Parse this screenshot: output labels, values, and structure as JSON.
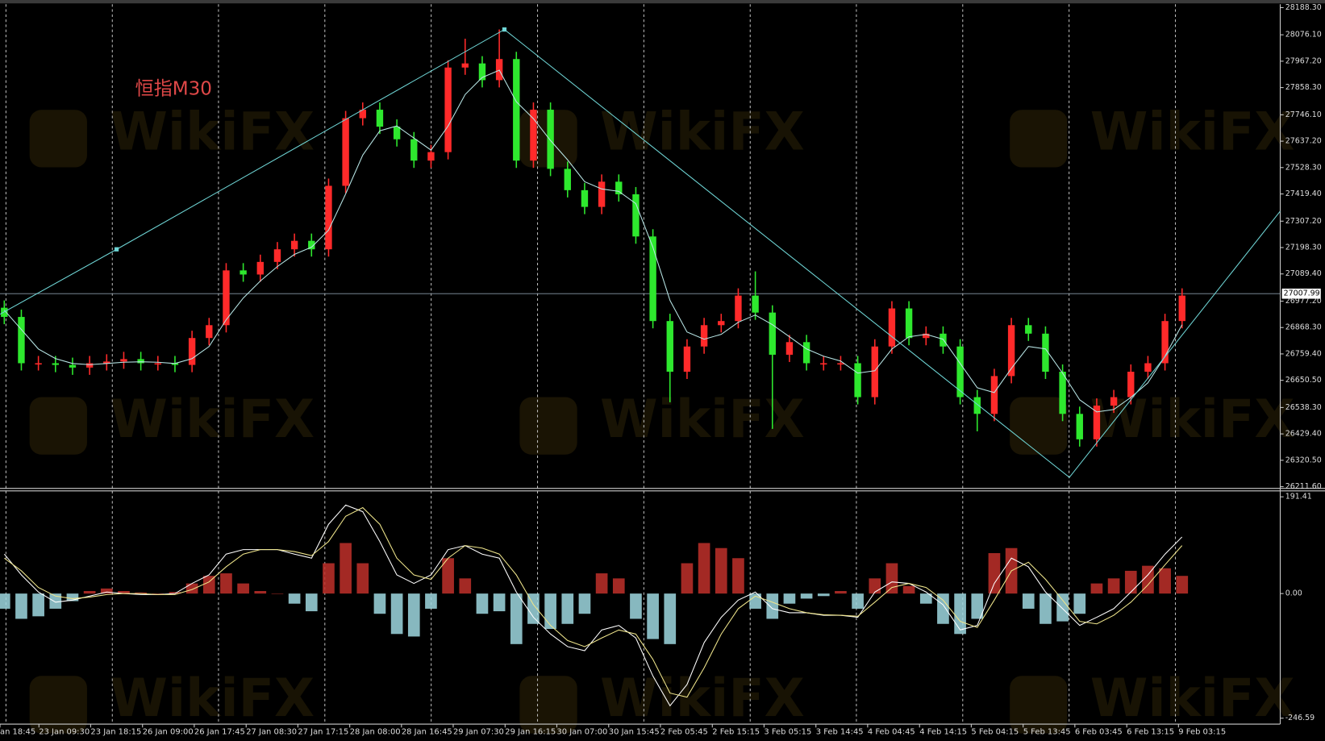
{
  "chart_data": [
    {
      "type": "candlestick",
      "title": "恒指M30",
      "watermark": "WikiFX",
      "up_color": "#ff2a2a",
      "down_color": "#2ee82e",
      "open": [
        26950,
        26912,
        26721,
        26721,
        26714,
        26703,
        26721,
        26728,
        26738,
        26721,
        26721,
        26714,
        26825,
        26878,
        27104,
        27087,
        27139,
        27191,
        27226,
        27191,
        27453,
        27732,
        27767,
        27697,
        27645,
        27557,
        27592,
        27941,
        27958,
        27889,
        27976,
        27557,
        27767,
        27523,
        27435,
        27366,
        27470,
        27418,
        27244,
        26895,
        26686,
        26790,
        26878,
        26895,
        27000,
        26930,
        26756,
        26808,
        26721,
        26721,
        26721,
        26581,
        26790,
        26947,
        26825,
        26843,
        26790,
        26581,
        26512,
        26668,
        26878,
        26843,
        26686,
        26512,
        26407,
        26546,
        26581,
        26686,
        26721,
        26895
      ],
      "high": [
        26980,
        26942,
        26751,
        26751,
        26744,
        26751,
        26758,
        26768,
        26768,
        26751,
        26751,
        26855,
        26908,
        27134,
        27134,
        27169,
        27221,
        27256,
        27256,
        27483,
        27762,
        27797,
        27797,
        27727,
        27675,
        27622,
        27971,
        28060,
        27988,
        28098,
        28006,
        27797,
        27797,
        27553,
        27465,
        27500,
        27500,
        27448,
        27274,
        26925,
        26820,
        26908,
        26925,
        27030,
        27100,
        26960,
        26838,
        26838,
        26751,
        26751,
        26751,
        26820,
        26977,
        26977,
        26873,
        26873,
        26820,
        26611,
        26698,
        26908,
        26908,
        26873,
        26716,
        26542,
        26576,
        26611,
        26716,
        26751,
        26925,
        27030
      ],
      "low": [
        26882,
        26691,
        26691,
        26684,
        26673,
        26673,
        26691,
        26698,
        26691,
        26691,
        26684,
        26684,
        26795,
        26848,
        27057,
        27057,
        27109,
        27161,
        27161,
        27161,
        27423,
        27702,
        27667,
        27615,
        27527,
        27527,
        27562,
        27911,
        27859,
        27859,
        27527,
        27527,
        27493,
        27405,
        27336,
        27336,
        27388,
        27214,
        26865,
        26560,
        26656,
        26760,
        26848,
        26865,
        26900,
        26450,
        26726,
        26691,
        26691,
        26691,
        26551,
        26551,
        26760,
        26795,
        26795,
        26760,
        26551,
        26440,
        26482,
        26638,
        26813,
        26656,
        26482,
        26377,
        26377,
        26516,
        26551,
        26656,
        26691,
        26865
      ],
      "close": [
        26912,
        26721,
        26721,
        26714,
        26703,
        26721,
        26728,
        26738,
        26721,
        26721,
        26714,
        26825,
        26878,
        27104,
        27087,
        27139,
        27191,
        27226,
        27191,
        27453,
        27732,
        27767,
        27697,
        27645,
        27557,
        27592,
        27941,
        27958,
        27889,
        27976,
        27557,
        27767,
        27523,
        27435,
        27366,
        27470,
        27418,
        27244,
        26895,
        26686,
        26790,
        26878,
        26895,
        27000,
        26930,
        26756,
        26808,
        26721,
        26721,
        26721,
        26581,
        26790,
        26947,
        26825,
        26843,
        26790,
        26581,
        26512,
        26668,
        26878,
        26843,
        26686,
        26512,
        26407,
        26546,
        26581,
        26686,
        26721,
        26895,
        27000
      ],
      "ma": {
        "color": "#b8e6e6",
        "values": [
          26940,
          26860,
          26780,
          26740,
          26720,
          26715,
          26720,
          26725,
          26727,
          26725,
          26720,
          26740,
          26790,
          26900,
          26990,
          27060,
          27120,
          27170,
          27200,
          27270,
          27420,
          27580,
          27680,
          27700,
          27650,
          27600,
          27700,
          27830,
          27900,
          27930,
          27800,
          27730,
          27640,
          27560,
          27470,
          27440,
          27430,
          27380,
          27200,
          26980,
          26850,
          26820,
          26840,
          26890,
          26920,
          26880,
          26830,
          26780,
          26750,
          26730,
          26680,
          26690,
          26780,
          26830,
          26840,
          26820,
          26720,
          26620,
          26600,
          26700,
          26790,
          26780,
          26680,
          26570,
          26520,
          26530,
          26580,
          26640,
          26750,
          26880
        ]
      },
      "trendline": {
        "color": "#6fd6d6",
        "x": [
          -0.25,
          6.58,
          29.3,
          62.4,
          74.75
        ],
        "y": [
          26923,
          27191,
          28098,
          26250,
          27348
        ]
      },
      "current_price": 27007.99,
      "xlim": [
        -0.25,
        74.75
      ],
      "ylim": [
        26211.6,
        28188.3
      ],
      "yticks": [
        {
          "value": 28188.3,
          "label": "28188.30"
        },
        {
          "value": 28076.1,
          "label": "28076.10"
        },
        {
          "value": 27967.2,
          "label": "27967.20"
        },
        {
          "value": 27858.3,
          "label": "27858.30"
        },
        {
          "value": 27746.1,
          "label": "27746.10"
        },
        {
          "value": 27637.2,
          "label": "27637.20"
        },
        {
          "value": 27528.3,
          "label": "27528.30"
        },
        {
          "value": 27419.4,
          "label": "27419.40"
        },
        {
          "value": 27307.2,
          "label": "27307.20"
        },
        {
          "value": 27198.3,
          "label": "27198.30"
        },
        {
          "value": 27089.4,
          "label": "27089.40"
        },
        {
          "value": 26977.2,
          "label": "26977.20"
        },
        {
          "value": 26868.3,
          "label": "26868.30"
        },
        {
          "value": 26759.4,
          "label": "26759.40"
        },
        {
          "value": 26650.5,
          "label": "26650.50"
        },
        {
          "value": 26538.3,
          "label": "26538.30"
        },
        {
          "value": 26429.4,
          "label": "26429.40"
        },
        {
          "value": 26320.5,
          "label": "26320.50"
        },
        {
          "value": 26211.6,
          "label": "26211.60"
        }
      ],
      "xticks": [
        {
          "value": -0.25,
          "label": "an 18:45"
        },
        {
          "value": 2.03,
          "label": "23 Jan 09:30"
        },
        {
          "value": 5.06,
          "label": "23 Jan 18:15"
        },
        {
          "value": 8.1,
          "label": "26 Jan 09:00"
        },
        {
          "value": 11.13,
          "label": "26 Jan 17:45"
        },
        {
          "value": 14.17,
          "label": "27 Jan 08:30"
        },
        {
          "value": 17.2,
          "label": "27 Jan 17:15"
        },
        {
          "value": 20.24,
          "label": "28 Jan 08:00"
        },
        {
          "value": 23.27,
          "label": "28 Jan 16:45"
        },
        {
          "value": 26.3,
          "label": "29 Jan 07:30"
        },
        {
          "value": 29.34,
          "label": "29 Jan 16:15"
        },
        {
          "value": 32.37,
          "label": "30 Jan 07:00"
        },
        {
          "value": 35.41,
          "label": "30 Jan 15:45"
        },
        {
          "value": 38.44,
          "label": "2 Feb 05:45"
        },
        {
          "value": 41.48,
          "label": "2 Feb 15:15"
        },
        {
          "value": 44.51,
          "label": "3 Feb 05:15"
        },
        {
          "value": 47.55,
          "label": "3 Feb 14:45"
        },
        {
          "value": 50.58,
          "label": "4 Feb 04:45"
        },
        {
          "value": 53.62,
          "label": "4 Feb 14:15"
        },
        {
          "value": 56.65,
          "label": "5 Feb 04:15"
        },
        {
          "value": 59.69,
          "label": "5 Feb 13:45"
        },
        {
          "value": 62.72,
          "label": "6 Feb 03:45"
        },
        {
          "value": 65.76,
          "label": "6 Feb 13:15"
        },
        {
          "value": 68.79,
          "label": "9 Feb 03:15"
        }
      ],
      "xgrid": [
        0.1,
        6.33,
        12.55,
        18.78,
        25.01,
        31.24,
        37.47,
        43.7,
        49.92,
        56.15,
        62.38,
        68.61
      ]
    },
    {
      "type": "macd",
      "histogram": {
        "pos_color": "#c0302a",
        "neg_color": "#9fd8e0",
        "values": [
          -30,
          -50,
          -45,
          -30,
          -15,
          5,
          10,
          5,
          2,
          0,
          3,
          20,
          35,
          40,
          20,
          5,
          0,
          -20,
          -35,
          60,
          100,
          60,
          -40,
          -80,
          -85,
          -30,
          70,
          30,
          -40,
          -35,
          -100,
          -60,
          -70,
          -60,
          -40,
          40,
          30,
          -50,
          -90,
          -100,
          60,
          100,
          90,
          70,
          -30,
          -50,
          -20,
          -10,
          -5,
          5,
          -30,
          30,
          60,
          15,
          -20,
          -60,
          -80,
          -50,
          80,
          90,
          -30,
          -60,
          -55,
          -40,
          20,
          30,
          45,
          55,
          50,
          35
        ]
      },
      "lines": [
        {
          "color": "#ffffff",
          "values": [
            78,
            37,
            3,
            -17,
            -13,
            -5,
            3,
            0,
            -2,
            -2,
            0,
            20,
            37,
            78,
            87,
            87,
            87,
            78,
            70,
            137,
            175,
            162,
            103,
            37,
            20,
            37,
            87,
            95,
            78,
            70,
            3,
            -47,
            -80,
            -105,
            -113,
            -72,
            -63,
            -88,
            -163,
            -222,
            -180,
            -97,
            -47,
            -13,
            3,
            -30,
            -38,
            -38,
            -43,
            -43,
            -47,
            3,
            23,
            20,
            3,
            -22,
            -72,
            -63,
            20,
            70,
            53,
            3,
            -30,
            -63,
            -47,
            -30,
            3,
            37,
            78,
            112
          ]
        },
        {
          "color": "#f0e68c",
          "values": [
            70,
            45,
            12,
            -5,
            -10,
            -7,
            -2,
            0,
            0,
            -2,
            -2,
            8,
            23,
            53,
            78,
            87,
            87,
            83,
            75,
            103,
            153,
            170,
            137,
            70,
            37,
            28,
            70,
            95,
            90,
            78,
            37,
            -22,
            -63,
            -93,
            -105,
            -88,
            -72,
            -80,
            -130,
            -197,
            -205,
            -147,
            -80,
            -30,
            -5,
            -17,
            -30,
            -38,
            -42,
            -43,
            -45,
            -17,
            12,
            20,
            12,
            -13,
            -55,
            -67,
            -13,
            45,
            62,
            28,
            -13,
            -55,
            -60,
            -43,
            -17,
            17,
            57,
            95
          ]
        }
      ],
      "xlim": [
        -0.25,
        74.75
      ],
      "ylim": [
        -246.59,
        191.41
      ],
      "yticks": [
        191.41,
        {
          "value": 0,
          "label": "0.00"
        },
        -246.59
      ]
    }
  ]
}
